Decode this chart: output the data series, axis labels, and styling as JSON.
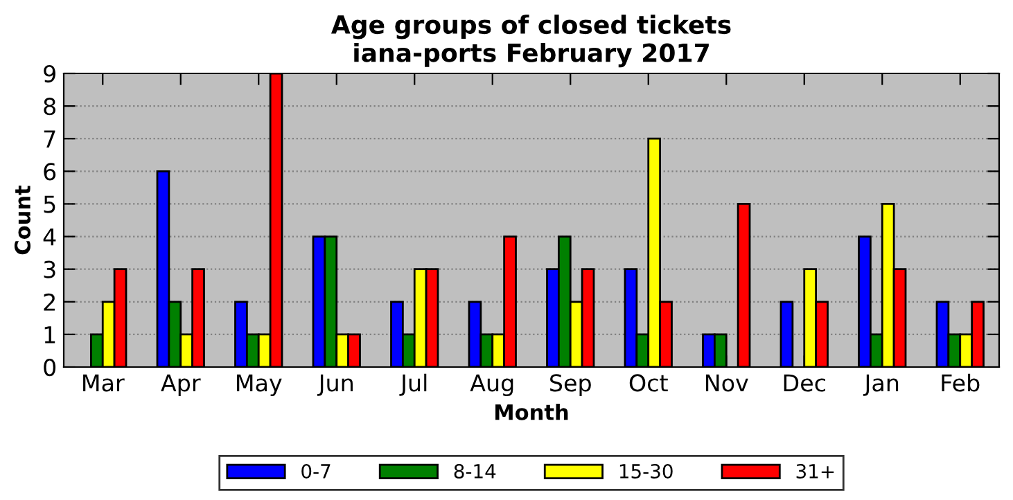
{
  "chart_data": {
    "type": "bar",
    "title": "Age groups of closed tickets\niana-ports February 2017",
    "xlabel": "Month",
    "ylabel": "Count",
    "categories": [
      "Mar",
      "Apr",
      "May",
      "Jun",
      "Jul",
      "Aug",
      "Sep",
      "Oct",
      "Nov",
      "Dec",
      "Jan",
      "Feb"
    ],
    "series": [
      {
        "name": "0-7",
        "color": "#0000ff",
        "values": [
          0,
          6,
          2,
          4,
          2,
          2,
          3,
          3,
          1,
          2,
          4,
          2
        ]
      },
      {
        "name": "8-14",
        "color": "#008000",
        "values": [
          1,
          2,
          1,
          4,
          1,
          1,
          4,
          1,
          1,
          0,
          1,
          1
        ]
      },
      {
        "name": "15-30",
        "color": "#ffff00",
        "values": [
          2,
          1,
          1,
          1,
          3,
          1,
          2,
          7,
          0,
          3,
          5,
          1
        ]
      },
      {
        "name": "31+",
        "color": "#ff0000",
        "values": [
          3,
          3,
          9,
          1,
          3,
          4,
          3,
          2,
          5,
          2,
          3,
          2
        ]
      }
    ],
    "ylim": [
      0,
      9
    ],
    "yticks": [
      0,
      1,
      2,
      3,
      4,
      5,
      6,
      7,
      8,
      9
    ],
    "grid": "y",
    "legend": "bottom"
  }
}
